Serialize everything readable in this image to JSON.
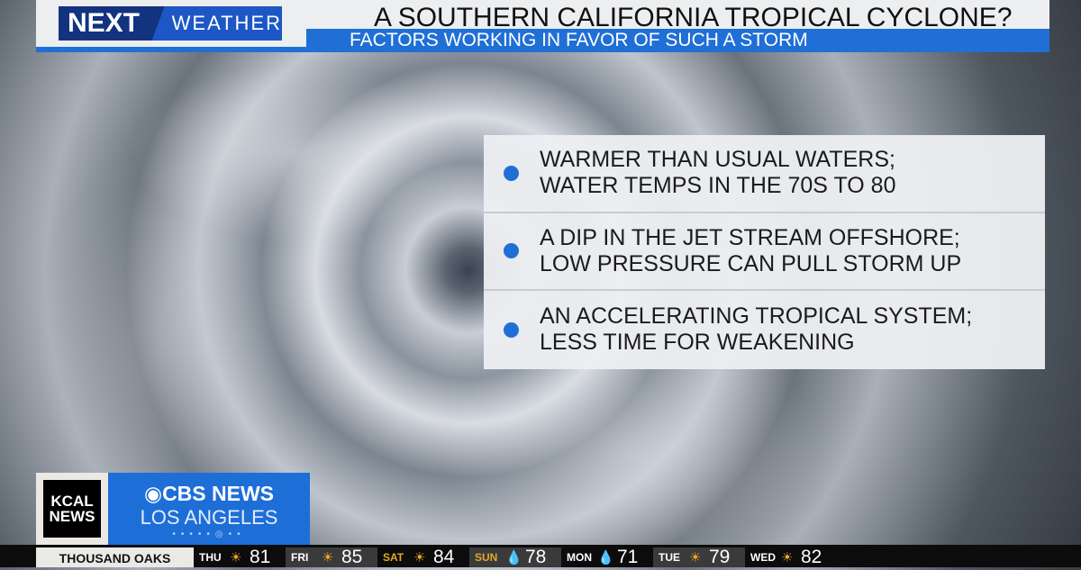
{
  "header": {
    "logo_next": "NEXT",
    "logo_weather": "WEATHER",
    "title": "A SOUTHERN CALIFORNIA TROPICAL CYCLONE?",
    "subtitle": "FACTORS WORKING IN FAVOR OF SUCH A STORM"
  },
  "factors": [
    {
      "line1": "WARMER THAN USUAL WATERS;",
      "line2": "WATER TEMPS IN THE 70S TO 80"
    },
    {
      "line1": "A DIP IN THE JET STREAM OFFSHORE;",
      "line2": "LOW PRESSURE CAN PULL STORM UP"
    },
    {
      "line1": "AN ACCELERATING TROPICAL SYSTEM;",
      "line2": "LESS TIME FOR WEAKENING"
    }
  ],
  "branding": {
    "kcal1": "KCAL",
    "kcal2": "NEWS",
    "cbs": "CBS NEWS",
    "city": "LOS ANGELES",
    "accent": "#1f6fd6"
  },
  "ticker": {
    "location": "THOUSAND OAKS",
    "days": [
      {
        "day": "THU",
        "icon": "sun-icon",
        "temp": "81"
      },
      {
        "day": "FRI",
        "icon": "sun-icon",
        "temp": "85"
      },
      {
        "day": "SAT",
        "icon": "sun-icon",
        "temp": "84"
      },
      {
        "day": "SUN",
        "icon": "rain-icon",
        "temp": "78"
      },
      {
        "day": "MON",
        "icon": "rain-icon",
        "temp": "71"
      },
      {
        "day": "TUE",
        "icon": "sun-icon",
        "temp": "79"
      },
      {
        "day": "WED",
        "icon": "sun-icon",
        "temp": "82"
      }
    ]
  }
}
